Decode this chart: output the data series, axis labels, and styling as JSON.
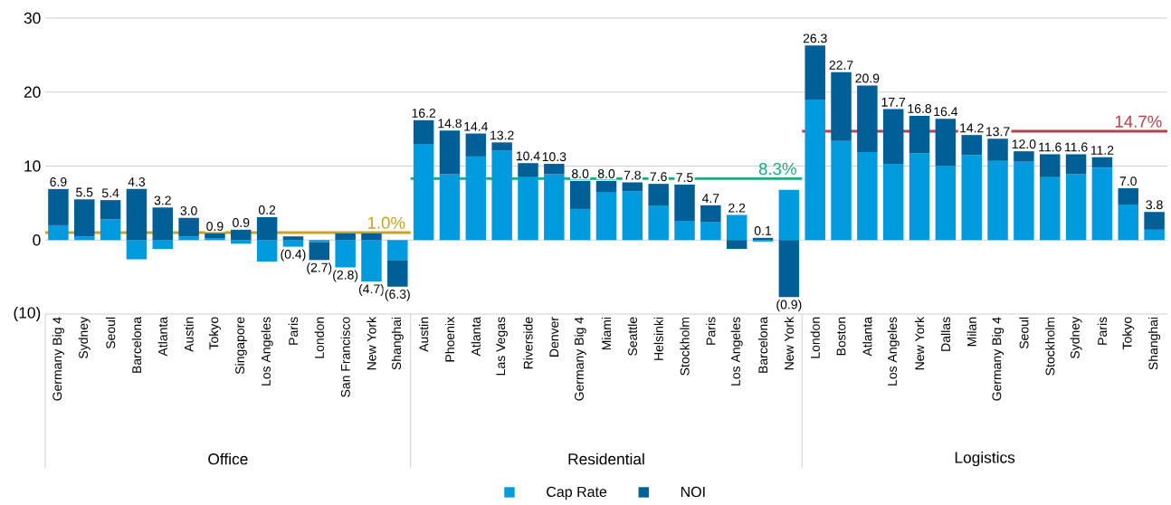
{
  "chart_data": {
    "type": "bar",
    "stacked": true,
    "categories": [
      "Germany Big 4",
      "Sydney",
      "Seoul",
      "Barcelona",
      "Atlanta",
      "Austin",
      "Tokyo",
      "Singapore",
      "Los Angeles",
      "Paris",
      "London",
      "San Francisco",
      "New York",
      "Shanghai",
      "Austin",
      "Phoenix",
      "Atlanta",
      "Las Vegas",
      "Riverside",
      "Denver",
      "Germany Big 4",
      "Miami",
      "Seattle",
      "Helsinki",
      "Stockholm",
      "Paris",
      "Los Angeles",
      "Barcelona",
      "New York",
      "London",
      "Boston",
      "Atlanta",
      "Los Angeles",
      "New York",
      "Dallas",
      "Milan",
      "Germany Big 4",
      "Seoul",
      "Stockholm",
      "Sydney",
      "Paris",
      "Tokyo",
      "Shanghai"
    ],
    "series": [
      {
        "name": "Cap Rate",
        "color": "#009ade",
        "values": [
          2.0,
          0.5,
          2.8,
          -2.6,
          -1.2,
          0.5,
          0.2,
          -0.5,
          -2.9,
          -0.9,
          -0.3,
          -3.7,
          -5.6,
          -2.7,
          13.0,
          8.9,
          11.3,
          12.1,
          8.5,
          8.9,
          4.2,
          6.5,
          6.6,
          4.6,
          2.6,
          2.4,
          3.4,
          -0.2,
          6.8,
          19.0,
          13.4,
          11.9,
          10.3,
          11.7,
          10.0,
          11.5,
          10.7,
          10.6,
          8.5,
          8.9,
          9.8,
          4.8,
          1.4
        ]
      },
      {
        "name": "NOI",
        "color": "#005f96",
        "values": [
          4.9,
          5.0,
          2.6,
          6.9,
          4.4,
          2.5,
          0.7,
          1.4,
          3.1,
          0.5,
          -2.4,
          0.9,
          0.9,
          -3.6,
          3.2,
          5.9,
          3.1,
          1.1,
          1.9,
          1.4,
          3.8,
          1.5,
          1.2,
          3.0,
          4.9,
          2.3,
          -1.2,
          0.3,
          -7.7,
          7.3,
          9.3,
          9.0,
          7.4,
          5.1,
          6.4,
          2.7,
          3.0,
          1.4,
          3.1,
          2.7,
          1.4,
          2.2,
          2.4
        ]
      }
    ],
    "totals": [
      "6.9",
      "5.5",
      "5.4",
      "4.3",
      "3.2",
      "3.0",
      "0.9",
      "0.9",
      "0.2",
      "(0.4)",
      "(2.7)",
      "(2.8)",
      "(4.7)",
      "(6.3)",
      "16.2",
      "14.8",
      "14.4",
      "13.2",
      "10.4",
      "10.3",
      "8.0",
      "8.0",
      "7.8",
      "7.6",
      "7.5",
      "4.7",
      "2.2",
      "0.1",
      "(0.9)",
      "26.3",
      "22.7",
      "20.9",
      "17.7",
      "16.8",
      "16.4",
      "14.2",
      "13.7",
      "12.0",
      "11.6",
      "11.6",
      "11.2",
      "7.0",
      "3.8"
    ],
    "ylim": [
      -10,
      30
    ],
    "yticks": [
      {
        "value": -10,
        "label": "(10)"
      },
      0,
      10,
      20,
      30
    ],
    "grid": "y",
    "legend": "bottom",
    "ref_lines": [
      {
        "axis": "y",
        "value": 1.0,
        "label": "1.0%",
        "color": "#c9a227"
      },
      {
        "axis": "y",
        "value": 8.3,
        "label": "8.3%",
        "color": "#1aab7f"
      },
      {
        "axis": "y",
        "value": 14.7,
        "label": "14.7%",
        "color": "#b5434f"
      }
    ],
    "annotations": [
      "Office",
      "Residential",
      "Logistics"
    ]
  }
}
